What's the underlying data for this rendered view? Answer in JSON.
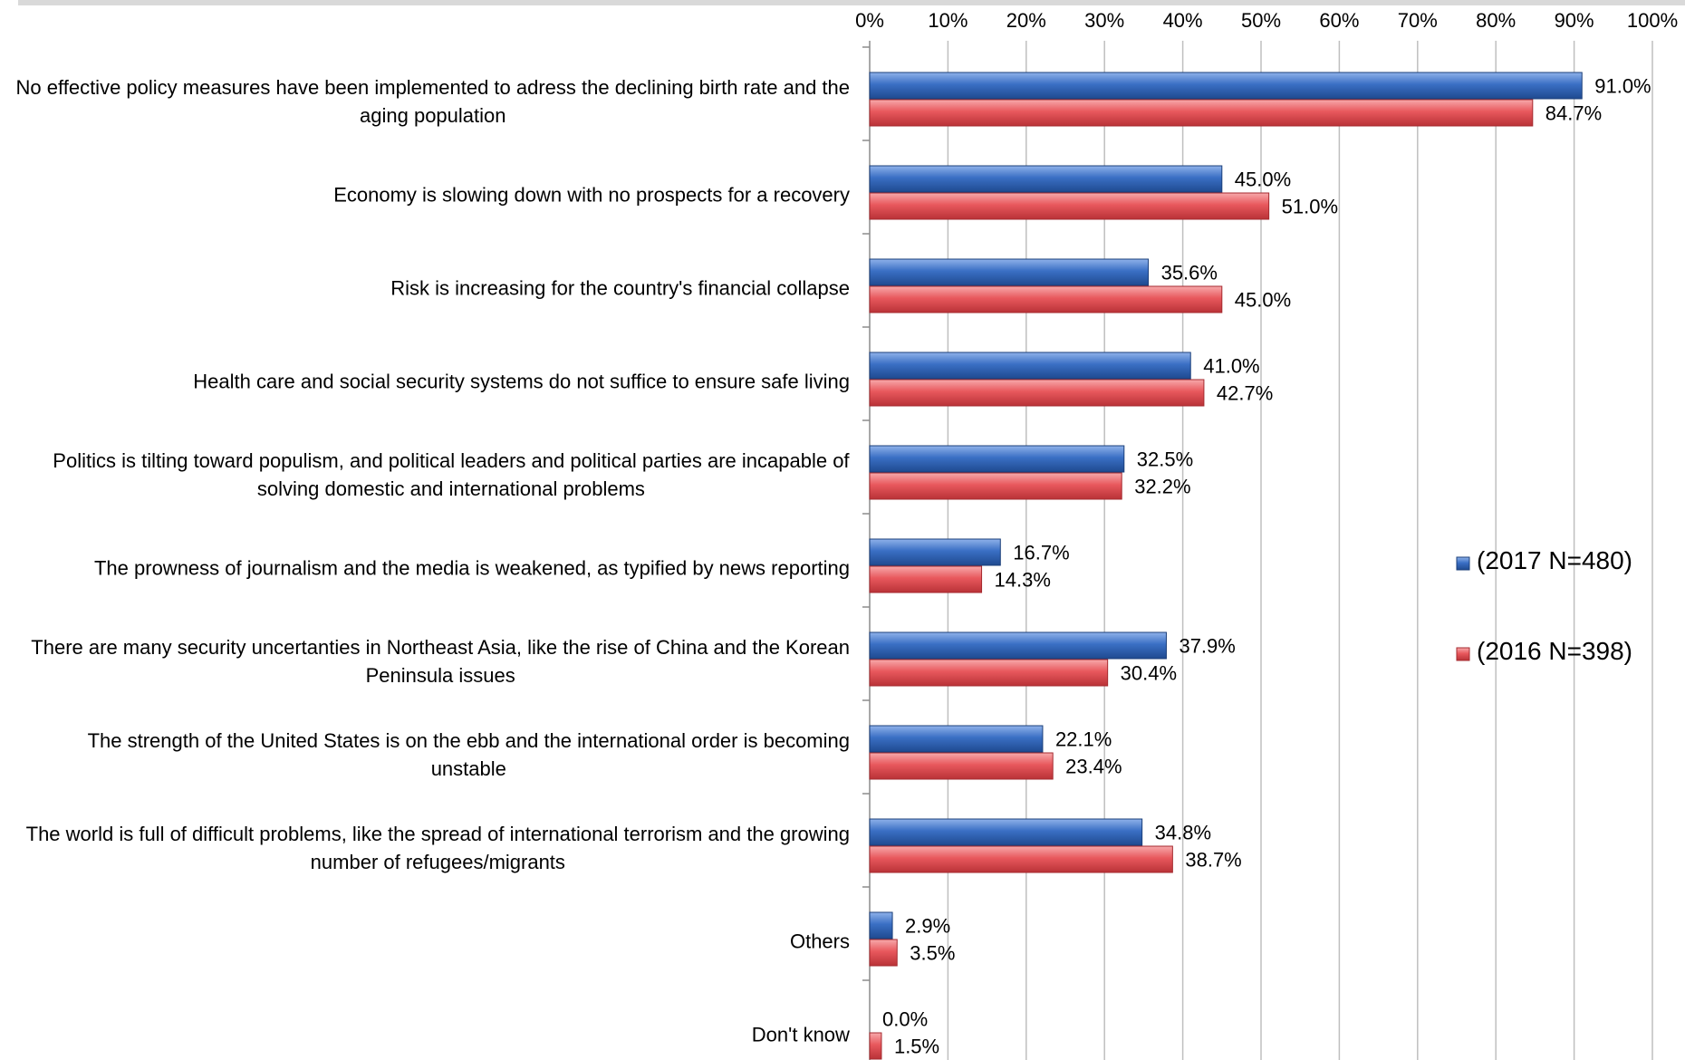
{
  "chart_data": {
    "type": "bar",
    "orientation": "horizontal",
    "title": "",
    "xlabel": "",
    "ylabel": "",
    "xlim": [
      0,
      100
    ],
    "x_ticks": [
      "0%",
      "10%",
      "20%",
      "30%",
      "40%",
      "50%",
      "60%",
      "70%",
      "80%",
      "90%",
      "100%"
    ],
    "grid": true,
    "legend_position": "right",
    "categories": [
      [
        "No effective policy measures have been implemented to adress the declining birth rate and the",
        "aging population"
      ],
      [
        "Economy is slowing down with no prospects for a recovery"
      ],
      [
        "Risk is increasing for the country's financial collapse"
      ],
      [
        "Health care and social security systems do not suffice to ensure safe living"
      ],
      [
        "Politics is tilting toward populism, and political leaders and political parties are incapable of",
        "solving domestic and international problems"
      ],
      [
        "The prowness of journalism and the media is weakened, as typified by news reporting"
      ],
      [
        "There are many security uncertanties in Northeast Asia, like the rise of China and the Korean",
        "Peninsula issues"
      ],
      [
        "The strength of the United States is on the ebb and the international order is becoming",
        "unstable"
      ],
      [
        "The world is full of difficult problems, like the spread of international terrorism and the growing",
        "number of refugees/migrants"
      ],
      [
        "Others"
      ],
      [
        "Don't know"
      ]
    ],
    "series": [
      {
        "name": "(2017 N=480)",
        "color": "#3a6fc4",
        "values": [
          91.0,
          45.0,
          35.6,
          41.0,
          32.5,
          16.7,
          37.9,
          22.1,
          34.8,
          2.9,
          0.0
        ],
        "labels": [
          "91.0%",
          "45.0%",
          "35.6%",
          "41.0%",
          "32.5%",
          "16.7%",
          "37.9%",
          "22.1%",
          "34.8%",
          "2.9%",
          "0.0%"
        ]
      },
      {
        "name": "(2016 N=398)",
        "color": "#e8585d",
        "values": [
          84.7,
          51.0,
          45.0,
          42.7,
          32.2,
          14.3,
          30.4,
          23.4,
          38.7,
          3.5,
          1.5
        ],
        "labels": [
          "84.7%",
          "51.0%",
          "45.0%",
          "42.7%",
          "32.2%",
          "14.3%",
          "30.4%",
          "23.4%",
          "38.7%",
          "3.5%",
          "1.5%"
        ]
      }
    ]
  }
}
